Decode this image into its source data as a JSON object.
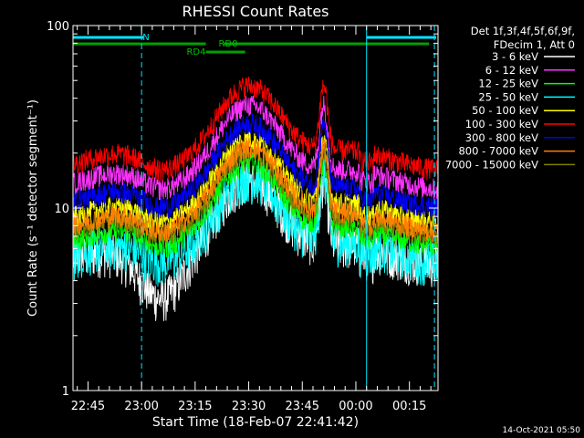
{
  "chart_data": {
    "type": "line",
    "title": "RHESSI Count Rates",
    "xlabel": "Start Time (18-Feb-07 22:41:42)",
    "ylabel": "Count Rate (s⁻¹ detector segment⁻¹)",
    "y_scale": "log",
    "ylim": [
      1,
      100
    ],
    "y_ticks": [
      "1",
      "10",
      "100"
    ],
    "x_range_minutes": [
      -4.2,
      98
    ],
    "x_ticks": [
      {
        "label": "22:45",
        "min": 0
      },
      {
        "label": "23:00",
        "min": 15
      },
      {
        "label": "23:15",
        "min": 30
      },
      {
        "label": "23:30",
        "min": 45
      },
      {
        "label": "23:45",
        "min": 60
      },
      {
        "label": "00:00",
        "min": 75
      },
      {
        "label": "00:15",
        "min": 90
      }
    ],
    "legend_header": [
      "Det 1f,3f,4f,5f,6f,9f,",
      "FDecim 1, Att 0"
    ],
    "series": [
      {
        "name": "3 - 6 keV",
        "color": "#ffffff",
        "base": 5.6
      },
      {
        "name": "6 - 12 keV",
        "color": "#ff33ff",
        "base": 14.5
      },
      {
        "name": "12 - 25 keV",
        "color": "#00ff00",
        "base": 7.0
      },
      {
        "name": "25 - 50 keV",
        "color": "#00ffff",
        "base": 5.8
      },
      {
        "name": "50 - 100 keV",
        "color": "#ffff00",
        "base": 9.5
      },
      {
        "name": "100 - 300 keV",
        "color": "#ff0000",
        "base": 18.5
      },
      {
        "name": "300 - 800 keV",
        "color": "#0000ff",
        "base": 11.5
      },
      {
        "name": "800 - 7000 keV",
        "color": "#ff8000",
        "base": 8.5
      },
      {
        "name": "7000 - 15000 keV",
        "color": "#808000",
        "base": 8.0
      }
    ],
    "flags": [
      {
        "label": "N",
        "color": "#00e5ff",
        "segments": [
          [
            -4.2,
            15.5
          ],
          [
            78,
            97.5
          ]
        ]
      },
      {
        "label": "RD0",
        "color": "#00a000",
        "segments": [
          [
            -4.2,
            33
          ],
          [
            38,
            95.5
          ]
        ]
      },
      {
        "label": "RD4",
        "color": "#00a000",
        "segments": [
          [
            33,
            38
          ],
          [
            38,
            44
          ]
        ]
      }
    ],
    "vertical_lines": [
      {
        "min": -4.2,
        "style": "solid"
      },
      {
        "min": 15,
        "style": "dashed"
      },
      {
        "min": 78,
        "style": "solid"
      },
      {
        "min": 97,
        "style": "dashed"
      }
    ]
  },
  "footer_date": "14-Oct-2021 05:50"
}
